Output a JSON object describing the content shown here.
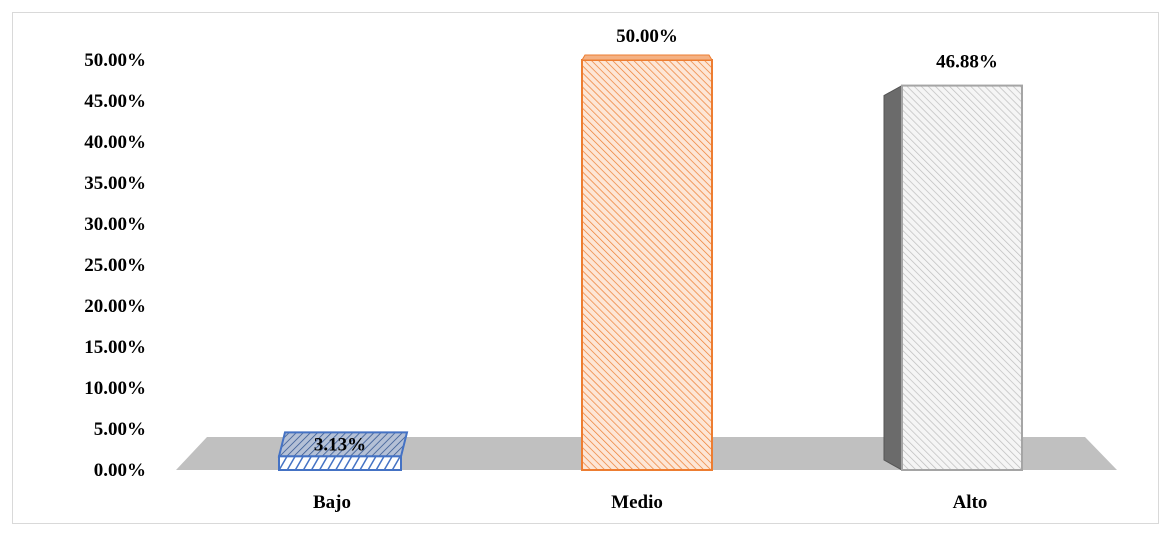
{
  "chart_data": {
    "type": "bar",
    "categories": [
      "Bajo",
      "Medio",
      "Alto"
    ],
    "values": [
      3.13,
      50.0,
      46.88
    ],
    "data_labels": [
      "3.13%",
      "50.00%",
      "46.88%"
    ],
    "ylim": [
      0,
      50
    ],
    "y_ticks": [
      "0.00%",
      "5.00%",
      "10.00%",
      "15.00%",
      "20.00%",
      "25.00%",
      "30.00%",
      "35.00%",
      "40.00%",
      "45.00%",
      "50.00%"
    ],
    "y_tick_values": [
      0,
      5,
      10,
      15,
      20,
      25,
      30,
      35,
      40,
      45,
      50
    ],
    "grid": false,
    "legend": "none",
    "style": "3d-column-hatched",
    "colors": {
      "Bajo": "#4472c4",
      "Medio": "#ed7d31",
      "Alto": "#a5a5a5",
      "floor": "#c0c0c0",
      "alto_side": "#6b6b6b"
    }
  }
}
